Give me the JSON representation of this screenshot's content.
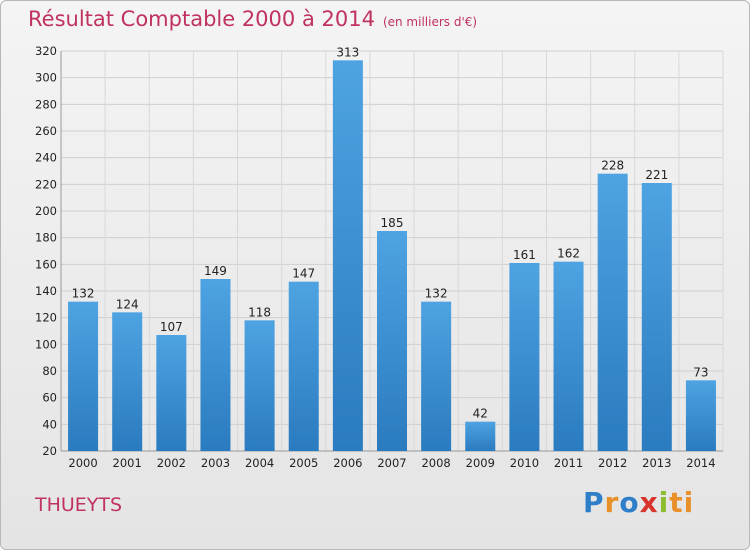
{
  "chart_data": {
    "type": "bar",
    "title": "Résultat Comptable 2000 à 2014",
    "subtitle": "(en milliers d'€)",
    "categories": [
      "2000",
      "2001",
      "2002",
      "2003",
      "2004",
      "2005",
      "2006",
      "2007",
      "2008",
      "2009",
      "2010",
      "2011",
      "2012",
      "2013",
      "2014"
    ],
    "values": [
      132,
      124,
      107,
      149,
      118,
      147,
      313,
      185,
      132,
      42,
      161,
      162,
      228,
      221,
      73
    ],
    "ylim": [
      20,
      320
    ],
    "yticks": [
      20,
      40,
      60,
      80,
      100,
      120,
      140,
      160,
      180,
      200,
      220,
      240,
      260,
      280,
      300,
      320
    ],
    "grid": true,
    "bar_color": "#4ea3e2",
    "bar_color_dark": "#2a7bbf"
  },
  "commune": "THUEYTS",
  "logo": [
    "P",
    "r",
    "o",
    "x",
    "i",
    "ti"
  ]
}
